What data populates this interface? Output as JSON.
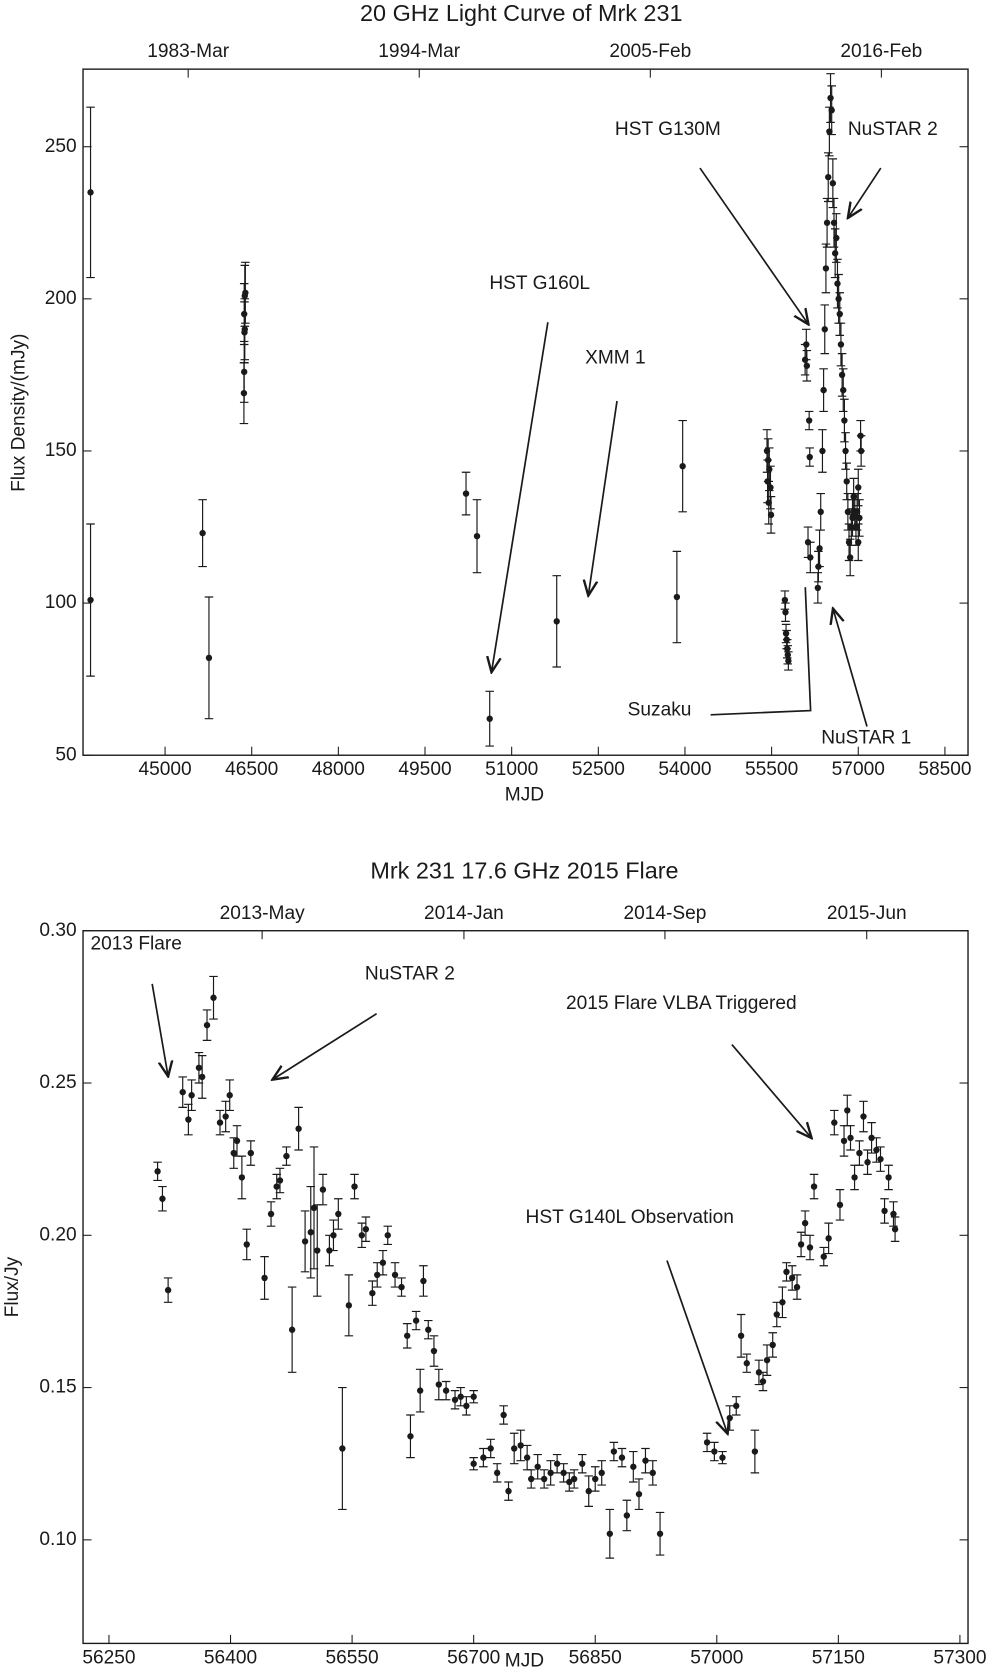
{
  "chart_data": [
    {
      "type": "scatter",
      "title": "20 GHz Light Curve of Mrk 231",
      "xlabel": "MJD",
      "ylabel": "Flux Density/(mJy)",
      "annotations": [
        "HST G130M",
        "NuSTAR 2",
        "HST G160L",
        "XMM 1",
        "Suzaku",
        "NuSTAR 1"
      ],
      "xlim": [
        43580,
        58900
      ],
      "ylim": [
        50,
        275.5
      ],
      "xticks": [
        45000,
        46500,
        48000,
        49500,
        51000,
        52500,
        54000,
        55500,
        57000,
        58500
      ],
      "yticks": [
        50,
        100,
        150,
        200,
        250
      ],
      "x2ticks": [
        {
          "value": 45400,
          "label": "1983-Mar"
        },
        {
          "value": 49400,
          "label": "1994-Mar"
        },
        {
          "value": 53400,
          "label": "2005-Feb"
        },
        {
          "value": 57400,
          "label": "2016-Feb"
        }
      ],
      "color": "#1a1a1a",
      "x": [
        43710,
        43710,
        45650,
        45760,
        46380,
        46390,
        46370,
        46380,
        46375,
        46370,
        46365,
        50210,
        50400,
        50620,
        51780,
        53860,
        53960,
        55420,
        55440,
        55460,
        55430,
        55480,
        55450,
        55490,
        55730,
        55740,
        55750,
        55760,
        55770,
        55780,
        55790,
        56100,
        56080,
        56110,
        56150,
        56160,
        56130,
        56170,
        56300,
        56310,
        56330,
        56350,
        56380,
        56400,
        56420,
        56440,
        56460,
        56480,
        56500,
        56520,
        56540,
        56560,
        56580,
        56600,
        56620,
        56640,
        56660,
        56680,
        56700,
        56720,
        56740,
        56760,
        56780,
        56800,
        56820,
        56840,
        56860,
        56880,
        56900,
        56920,
        56940,
        56960,
        56980,
        57000,
        57020,
        57040,
        57050,
        57000
      ],
      "values": [
        235,
        101,
        123,
        82,
        201,
        202,
        195,
        190,
        189,
        176,
        169,
        136,
        122,
        62,
        94,
        102,
        145,
        150,
        147,
        144,
        140,
        138,
        133,
        129,
        101,
        97,
        90,
        88,
        85,
        83,
        81,
        185,
        180,
        178,
        160,
        148,
        120,
        115,
        105,
        112,
        118,
        130,
        150,
        170,
        190,
        210,
        225,
        240,
        255,
        266,
        262,
        238,
        225,
        215,
        220,
        205,
        200,
        195,
        185,
        175,
        170,
        160,
        150,
        140,
        130,
        120,
        115,
        125,
        128,
        135,
        130,
        125,
        130,
        120,
        128,
        155,
        150,
        138
      ],
      "errors": [
        28,
        25,
        11,
        20,
        10,
        10,
        10,
        10,
        10,
        10,
        10,
        7,
        12,
        9,
        15,
        15,
        15,
        7,
        7,
        7,
        7,
        7,
        7,
        6,
        3,
        3,
        3,
        3,
        3,
        3,
        3,
        5,
        5,
        5,
        3,
        3,
        5,
        5,
        5,
        5,
        6,
        6,
        7,
        7,
        8,
        8,
        8,
        8,
        8,
        8,
        8,
        8,
        8,
        8,
        8,
        8,
        8,
        7,
        7,
        7,
        7,
        7,
        6,
        6,
        6,
        6,
        6,
        6,
        6,
        6,
        6,
        6,
        6,
        6,
        6,
        5,
        5,
        6
      ]
    },
    {
      "type": "scatter",
      "title": "Mrk 231 17.6 GHz 2015 Flare",
      "xlabel": "MJD",
      "ylabel": "Flux/Jy",
      "annotations": [
        "2013 Flare",
        "NuSTAR 2",
        "2015 Flare VLBA Triggered",
        "HST G140L Observation"
      ],
      "xlim": [
        56218,
        57310
      ],
      "ylim": [
        0.066,
        0.3
      ],
      "xticks": [
        56250,
        56400,
        56550,
        56700,
        56850,
        57000,
        57150,
        57300
      ],
      "yticks": [
        {
          "value": 0.1,
          "label": "0.10"
        },
        0.15,
        {
          "value": 0.2,
          "label": "0.20"
        },
        0.25,
        {
          "value": 0.3,
          "label": "0.30"
        }
      ],
      "x2ticks": [
        {
          "value": 56439,
          "label": "2013-May"
        },
        {
          "value": 56688,
          "label": "2014-Jan"
        },
        {
          "value": 56936,
          "label": "2014-Sep"
        },
        {
          "value": 57185,
          "label": "2015-Jun"
        }
      ],
      "color": "#1a1a1a",
      "x": [
        56310,
        56316,
        56323,
        56341,
        56348,
        56352,
        56361,
        56365,
        56371,
        56379,
        56387,
        56394,
        56399,
        56404,
        56408,
        56414,
        56420,
        56425,
        56442,
        56450,
        56457,
        56461,
        56469,
        56476,
        56484,
        56492,
        56499,
        56503,
        56507,
        56514,
        56522,
        56527,
        56533,
        56538,
        56546,
        56553,
        56562,
        56567,
        56575,
        56581,
        56588,
        56594,
        56603,
        56611,
        56618,
        56622,
        56629,
        56634,
        56638,
        56644,
        56651,
        56657,
        56666,
        56677,
        56684,
        56691,
        56700,
        56700,
        56712,
        56721,
        56729,
        56737,
        56743,
        56750,
        56758,
        56766,
        56771,
        56779,
        56787,
        56795,
        56803,
        56811,
        56818,
        56824,
        56834,
        56842,
        56850,
        56858,
        56868,
        56873,
        56883,
        56889,
        56897,
        56904,
        56912,
        56921,
        56930,
        56988,
        56997,
        57007,
        57016,
        57024,
        57030,
        57037,
        57047,
        57052,
        57057,
        57062,
        57069,
        57074,
        57081,
        57086,
        57093,
        57099,
        57104,
        57109,
        57115,
        57120,
        57132,
        57138,
        57145,
        57152,
        57157,
        57161,
        57165,
        57170,
        57176,
        57181,
        57186,
        57191,
        57197,
        57202,
        57207,
        57212,
        57218,
        57220
      ],
      "values": [
        0.221,
        0.212,
        0.182,
        0.247,
        0.238,
        0.246,
        0.255,
        0.252,
        0.269,
        0.278,
        0.237,
        0.239,
        0.246,
        0.227,
        0.231,
        0.219,
        0.197,
        0.227,
        0.186,
        0.207,
        0.216,
        0.218,
        0.226,
        0.169,
        0.235,
        0.198,
        0.201,
        0.209,
        0.195,
        0.215,
        0.195,
        0.2,
        0.207,
        0.13,
        0.177,
        0.216,
        0.2,
        0.202,
        0.181,
        0.187,
        0.191,
        0.2,
        0.187,
        0.183,
        0.167,
        0.134,
        0.172,
        0.149,
        0.185,
        0.169,
        0.162,
        0.151,
        0.149,
        0.146,
        0.147,
        0.144,
        0.147,
        0.125,
        0.127,
        0.13,
        0.122,
        0.141,
        0.116,
        0.13,
        0.131,
        0.127,
        0.12,
        0.124,
        0.12,
        0.122,
        0.125,
        0.122,
        0.119,
        0.12,
        0.125,
        0.116,
        0.12,
        0.122,
        0.102,
        0.129,
        0.127,
        0.108,
        0.124,
        0.115,
        0.126,
        0.122,
        0.102,
        0.132,
        0.129,
        0.127,
        0.14,
        0.144,
        0.167,
        0.158,
        0.129,
        0.155,
        0.152,
        0.159,
        0.164,
        0.174,
        0.178,
        0.188,
        0.186,
        0.183,
        0.197,
        0.204,
        0.196,
        0.216,
        0.193,
        0.199,
        0.237,
        0.21,
        0.231,
        0.241,
        0.232,
        0.219,
        0.227,
        0.239,
        0.224,
        0.232,
        0.228,
        0.225,
        0.208,
        0.219,
        0.207,
        0.202
      ],
      "errors": [
        0.003,
        0.004,
        0.004,
        0.005,
        0.005,
        0.005,
        0.005,
        0.007,
        0.005,
        0.007,
        0.004,
        0.005,
        0.005,
        0.005,
        0.005,
        0.007,
        0.005,
        0.004,
        0.007,
        0.004,
        0.004,
        0.004,
        0.003,
        0.014,
        0.007,
        0.01,
        0.015,
        0.02,
        0.015,
        0.005,
        0.005,
        0.005,
        0.005,
        0.02,
        0.01,
        0.004,
        0.004,
        0.004,
        0.004,
        0.004,
        0.004,
        0.003,
        0.004,
        0.003,
        0.004,
        0.007,
        0.003,
        0.007,
        0.005,
        0.003,
        0.005,
        0.005,
        0.003,
        0.003,
        0.003,
        0.003,
        0.002,
        0.002,
        0.003,
        0.003,
        0.003,
        0.003,
        0.003,
        0.005,
        0.005,
        0.004,
        0.003,
        0.004,
        0.003,
        0.004,
        0.003,
        0.003,
        0.003,
        0.003,
        0.003,
        0.005,
        0.004,
        0.004,
        0.008,
        0.003,
        0.003,
        0.005,
        0.005,
        0.005,
        0.004,
        0.004,
        0.007,
        0.003,
        0.003,
        0.002,
        0.004,
        0.003,
        0.007,
        0.003,
        0.007,
        0.004,
        0.003,
        0.005,
        0.004,
        0.004,
        0.005,
        0.003,
        0.004,
        0.004,
        0.004,
        0.004,
        0.004,
        0.004,
        0.003,
        0.005,
        0.004,
        0.005,
        0.005,
        0.005,
        0.004,
        0.004,
        0.004,
        0.005,
        0.004,
        0.005,
        0.004,
        0.004,
        0.004,
        0.004,
        0.004,
        0.004
      ]
    }
  ]
}
